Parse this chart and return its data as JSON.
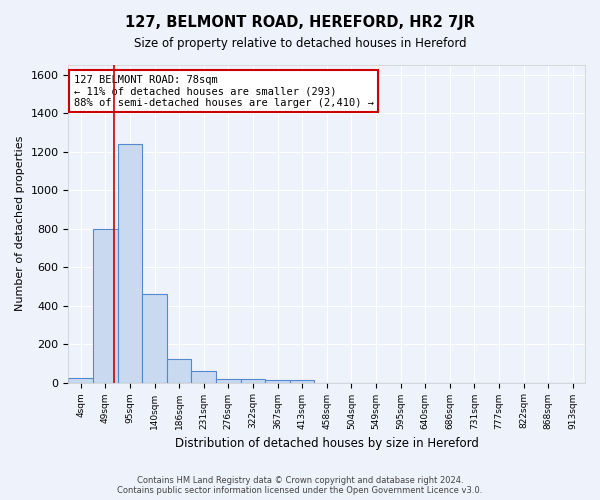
{
  "title": "127, BELMONT ROAD, HEREFORD, HR2 7JR",
  "subtitle": "Size of property relative to detached houses in Hereford",
  "xlabel": "Distribution of detached houses by size in Hereford",
  "ylabel": "Number of detached properties",
  "footer_line1": "Contains HM Land Registry data © Crown copyright and database right 2024.",
  "footer_line2": "Contains public sector information licensed under the Open Government Licence v3.0.",
  "bin_labels": [
    "4sqm",
    "49sqm",
    "95sqm",
    "140sqm",
    "186sqm",
    "231sqm",
    "276sqm",
    "322sqm",
    "367sqm",
    "413sqm",
    "458sqm",
    "504sqm",
    "549sqm",
    "595sqm",
    "640sqm",
    "686sqm",
    "731sqm",
    "777sqm",
    "822sqm",
    "868sqm",
    "913sqm"
  ],
  "bar_heights": [
    25,
    800,
    1240,
    460,
    125,
    60,
    20,
    20,
    15,
    15,
    0,
    0,
    0,
    0,
    0,
    0,
    0,
    0,
    0,
    0,
    0
  ],
  "bar_color": "#c9d9f0",
  "bar_edge_color": "#5588cc",
  "background_color": "#eef2fa",
  "grid_color": "#ffffff",
  "red_line_x": 1.34,
  "annotation_text": "127 BELMONT ROAD: 78sqm\n← 11% of detached houses are smaller (293)\n88% of semi-detached houses are larger (2,410) →",
  "annotation_box_color": "#ffffff",
  "annotation_box_edge": "#cc0000",
  "ylim": [
    0,
    1650
  ],
  "yticks": [
    0,
    200,
    400,
    600,
    800,
    1000,
    1200,
    1400,
    1600
  ]
}
